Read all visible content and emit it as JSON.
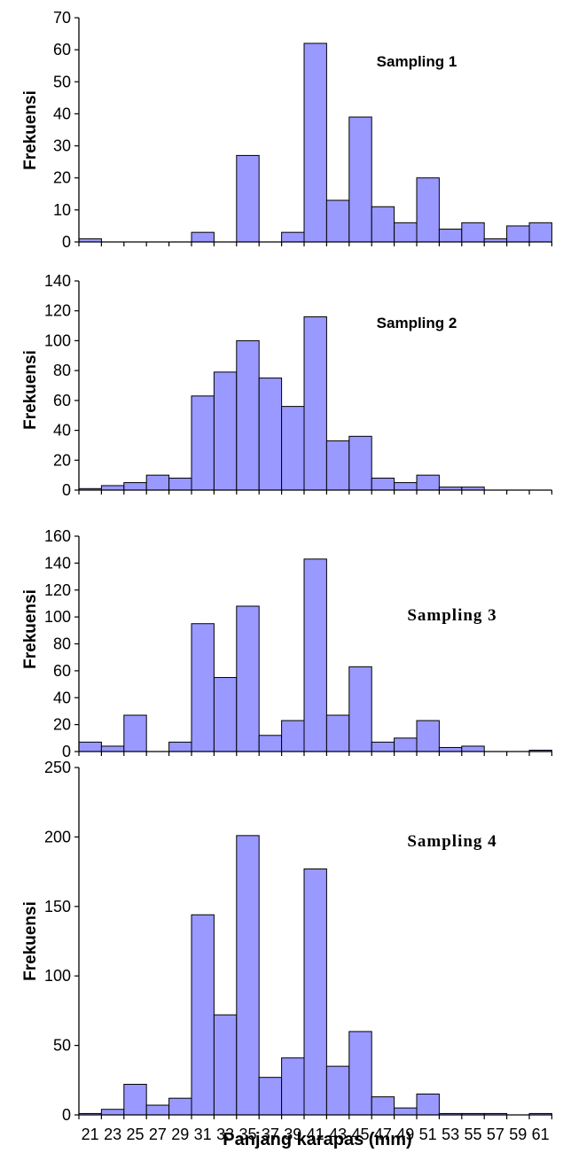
{
  "chart_data": [
    {
      "type": "bar",
      "title": "Sampling 1",
      "ylabel": "Frekuensi",
      "xlabel": "",
      "ylim": [
        0,
        70
      ],
      "yticks": [
        0,
        10,
        20,
        30,
        40,
        50,
        60,
        70
      ],
      "categories": [
        "21",
        "23",
        "25",
        "27",
        "29",
        "31",
        "33",
        "35",
        "37",
        "39",
        "41",
        "43",
        "45",
        "47",
        "49",
        "51",
        "53",
        "55",
        "57",
        "59",
        "61"
      ],
      "values": [
        1,
        0,
        0,
        0,
        0,
        3,
        0,
        27,
        0,
        3,
        62,
        13,
        39,
        11,
        6,
        20,
        4,
        6,
        1,
        5,
        6
      ],
      "bar_color": "#9999ff"
    },
    {
      "type": "bar",
      "title": "Sampling 2",
      "ylabel": "Frekuensi",
      "xlabel": "",
      "ylim": [
        0,
        140
      ],
      "yticks": [
        0,
        20,
        40,
        60,
        80,
        100,
        120,
        140
      ],
      "categories": [
        "21",
        "23",
        "25",
        "27",
        "29",
        "31",
        "33",
        "35",
        "37",
        "39",
        "41",
        "43",
        "45",
        "47",
        "49",
        "51",
        "53",
        "55",
        "57",
        "59",
        "61"
      ],
      "values": [
        1,
        3,
        5,
        10,
        8,
        63,
        79,
        100,
        75,
        56,
        116,
        33,
        36,
        8,
        5,
        10,
        2,
        2,
        0,
        0,
        0
      ],
      "bar_color": "#9999ff"
    },
    {
      "type": "bar",
      "title": "Sampling 3",
      "ylabel": "Frekuensi",
      "xlabel": "",
      "ylim": [
        0,
        160
      ],
      "yticks": [
        0,
        20,
        40,
        60,
        80,
        100,
        120,
        140,
        160
      ],
      "categories": [
        "21",
        "23",
        "25",
        "27",
        "29",
        "31",
        "33",
        "35",
        "37",
        "39",
        "41",
        "43",
        "45",
        "47",
        "49",
        "51",
        "53",
        "55",
        "57",
        "59",
        "61"
      ],
      "values": [
        7,
        4,
        27,
        0,
        7,
        95,
        55,
        108,
        12,
        23,
        143,
        27,
        63,
        7,
        10,
        23,
        3,
        4,
        0,
        0,
        1
      ],
      "bar_color": "#9999ff"
    },
    {
      "type": "bar",
      "title": "Sampling 4",
      "ylabel": "Frekuensi",
      "xlabel": "Panjang karapas (mm)",
      "ylim": [
        0,
        250
      ],
      "yticks": [
        0,
        50,
        100,
        150,
        200,
        250
      ],
      "categories": [
        "21",
        "23",
        "25",
        "27",
        "29",
        "31",
        "33",
        "35",
        "37",
        "39",
        "41",
        "43",
        "45",
        "47",
        "49",
        "51",
        "53",
        "55",
        "57",
        "59",
        "61"
      ],
      "values": [
        1,
        4,
        22,
        7,
        12,
        144,
        72,
        201,
        27,
        41,
        177,
        35,
        60,
        13,
        5,
        15,
        1,
        1,
        1,
        0,
        1
      ],
      "bar_color": "#9999ff"
    }
  ]
}
